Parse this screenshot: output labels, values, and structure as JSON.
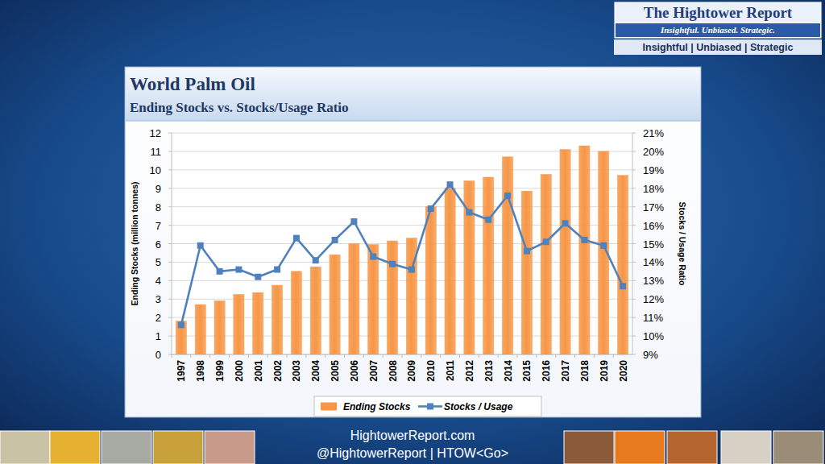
{
  "chart_data": {
    "type": "bar",
    "title": "World Palm Oil",
    "subtitle": "Ending Stocks vs. Stocks/Usage Ratio",
    "y_label": "Ending Stocks (million tonnes)",
    "y2_label": "Stocks / Usage Ratio",
    "categories": [
      "1997",
      "1998",
      "1999",
      "2000",
      "2001",
      "2002",
      "2003",
      "2004",
      "2005",
      "2006",
      "2007",
      "2008",
      "2009",
      "2010",
      "2011",
      "2012",
      "2013",
      "2014",
      "2015",
      "2016",
      "2017",
      "2018",
      "2019",
      "2020"
    ],
    "series": [
      {
        "name": "Ending Stocks",
        "type": "bar",
        "color": "#f79646",
        "values": [
          1.8,
          2.7,
          2.9,
          3.25,
          3.35,
          3.75,
          4.5,
          4.75,
          5.4,
          6.0,
          5.95,
          6.15,
          6.3,
          8.0,
          9.0,
          9.4,
          9.6,
          10.7,
          8.85,
          9.75,
          11.1,
          11.3,
          11.0,
          9.7
        ]
      },
      {
        "name": "Stocks / Usage",
        "type": "line",
        "axis": "y2",
        "color": "#4f81bd",
        "marker": "square",
        "line_style": "solid",
        "values": [
          10.6,
          14.9,
          13.5,
          13.6,
          13.2,
          13.6,
          15.3,
          14.1,
          15.2,
          16.2,
          14.3,
          13.9,
          13.6,
          16.9,
          18.2,
          16.7,
          16.3,
          17.6,
          14.6,
          15.1,
          16.1,
          15.2,
          14.9,
          12.7
        ]
      }
    ],
    "ylim": [
      0,
      12
    ],
    "yticks": [
      0,
      1,
      2,
      3,
      4,
      5,
      6,
      7,
      8,
      9,
      10,
      11,
      12
    ],
    "y2lim": [
      9,
      21
    ],
    "y2ticks": [
      {
        "value": 9,
        "label": "9%"
      },
      {
        "value": 10,
        "label": "10%"
      },
      {
        "value": 11,
        "label": "11%"
      },
      {
        "value": 12,
        "label": "12%"
      },
      {
        "value": 13,
        "label": "13%"
      },
      {
        "value": 14,
        "label": "14%"
      },
      {
        "value": 15,
        "label": "15%"
      },
      {
        "value": 16,
        "label": "16%"
      },
      {
        "value": 17,
        "label": "17%"
      },
      {
        "value": 18,
        "label": "18%"
      },
      {
        "value": 19,
        "label": "19%"
      },
      {
        "value": 20,
        "label": "20%"
      },
      {
        "value": 21,
        "label": "21%"
      }
    ],
    "grid": true,
    "legend": "bottom"
  },
  "page": {
    "logo_title": "The Hightower Report",
    "logo_tagline": "Insightful. Unbiased. Strategic.",
    "logo_subline": "Insightful | Unbiased | Strategic",
    "footer_lines": [
      "HightowerReport.com",
      "@HightowerReport | HTOW<Go>"
    ]
  }
}
